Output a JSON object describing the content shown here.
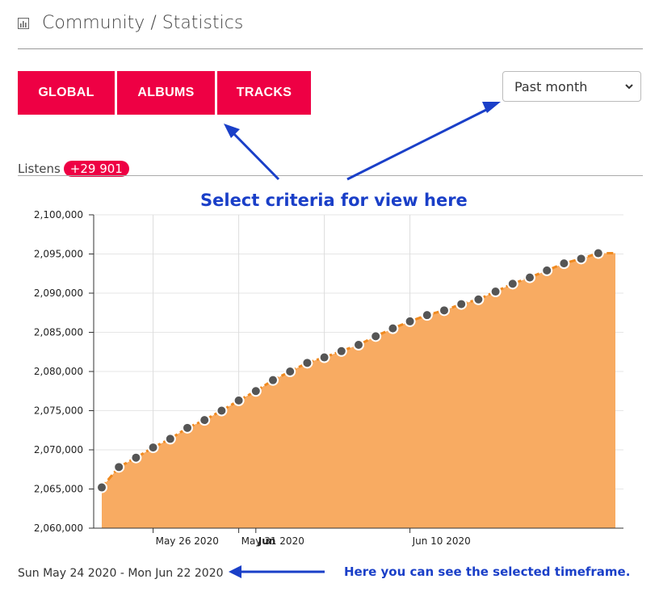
{
  "header": {
    "title": "Community / Statistics",
    "icon": "bar-chart-icon"
  },
  "tabs": [
    {
      "label": "GLOBAL",
      "name": "tab-global"
    },
    {
      "label": "ALBUMS",
      "name": "tab-albums"
    },
    {
      "label": "TRACKS",
      "name": "tab-tracks"
    }
  ],
  "timeframe_select": {
    "value": "Past month"
  },
  "listens": {
    "label": "Listens",
    "delta": "+29 901"
  },
  "annotations": {
    "main": "Select criteria for view here",
    "bottom": "Here you can see the selected timeframe."
  },
  "range_text": "Sun May 24 2020 - Mon Jun 22 2020",
  "colors": {
    "accent": "#ee0044",
    "area": "#f8ab62",
    "line": "#f08a20",
    "annotation": "#1a3fc8"
  },
  "chart_data": {
    "type": "area",
    "ylim": [
      2060000,
      2100000
    ],
    "yticks": [
      2060000,
      2065000,
      2070000,
      2075000,
      2080000,
      2085000,
      2090000,
      2095000,
      2100000
    ],
    "ytick_labels": [
      "2,060,000",
      "2,065,000",
      "2,070,000",
      "2,075,000",
      "2,080,000",
      "2,085,000",
      "2,090,000",
      "2,095,000",
      "2,100,000"
    ],
    "xlim": [
      "2020-05-23",
      "2020-06-22"
    ],
    "xticks": [
      {
        "date": "2020-05-26",
        "label": "May 26 2020",
        "bold": false
      },
      {
        "date": "2020-05-31",
        "label": "May 31 2020",
        "bold": false
      },
      {
        "date": "2020-06-01",
        "label": "Jun",
        "bold": true
      },
      {
        "date": "2020-06-10",
        "label": "Jun 10 2020",
        "bold": false
      }
    ],
    "gridlines": [
      "2020-05-26",
      "2020-05-31",
      "2020-06-05",
      "2020-06-10"
    ],
    "grid": true,
    "x": [
      "2020-05-23",
      "2020-05-24",
      "2020-05-25",
      "2020-05-26",
      "2020-05-27",
      "2020-05-28",
      "2020-05-29",
      "2020-05-30",
      "2020-05-31",
      "2020-06-01",
      "2020-06-02",
      "2020-06-03",
      "2020-06-04",
      "2020-06-05",
      "2020-06-06",
      "2020-06-07",
      "2020-06-08",
      "2020-06-09",
      "2020-06-10",
      "2020-06-11",
      "2020-06-12",
      "2020-06-13",
      "2020-06-14",
      "2020-06-15",
      "2020-06-16",
      "2020-06-17",
      "2020-06-18",
      "2020-06-19",
      "2020-06-20",
      "2020-06-21",
      "2020-06-22"
    ],
    "values": [
      2065200,
      2067800,
      2069000,
      2070300,
      2071400,
      2072800,
      2073800,
      2075000,
      2076300,
      2077500,
      2078900,
      2080000,
      2081100,
      2081800,
      2082600,
      2083400,
      2084500,
      2085500,
      2086400,
      2087200,
      2087800,
      2088600,
      2089200,
      2090200,
      2091200,
      2092000,
      2092900,
      2093800,
      2094400,
      2095100,
      2095100
    ]
  }
}
